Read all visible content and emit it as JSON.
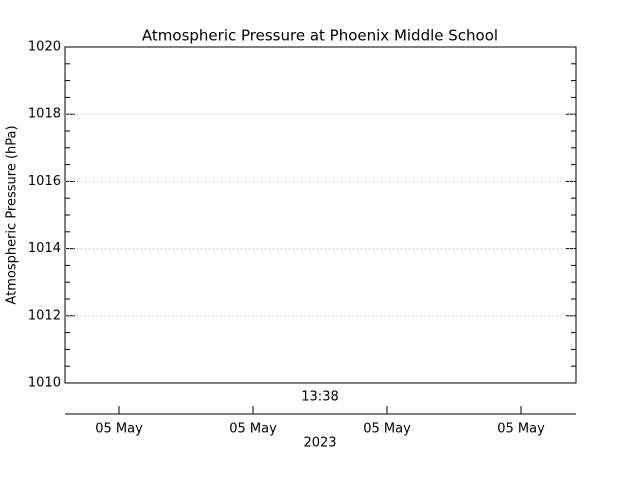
{
  "chart_data": {
    "type": "line",
    "title": "Atmospheric Pressure at Phoenix Middle School",
    "y_label": "Atmospheric Pressure (hPa)",
    "ylim": [
      1010,
      1020
    ],
    "yticks": [
      1010,
      1012,
      1014,
      1016,
      1018,
      1020
    ],
    "grid": true,
    "time_label": "13:38",
    "categories": [
      "05 May",
      "05 May",
      "05 May",
      "05 May"
    ],
    "x_label": "2023"
  }
}
